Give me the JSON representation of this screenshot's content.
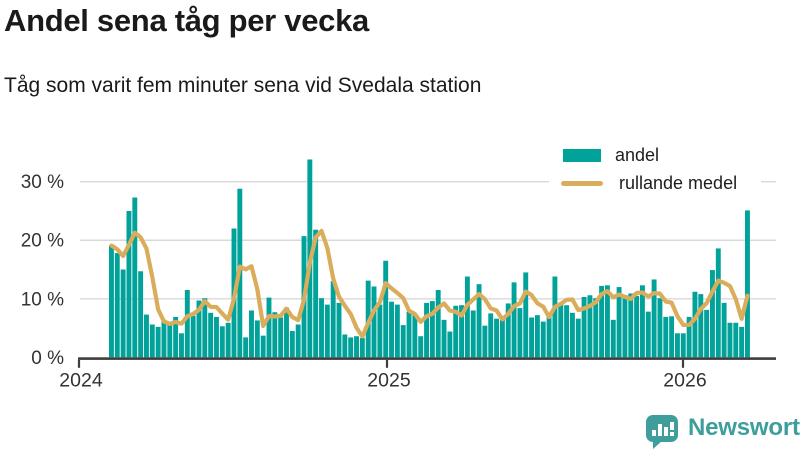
{
  "header": {
    "title": "Andel sena tåg per vecka",
    "subtitle": "Tåg som varit fem minuter sena vid Svedala station"
  },
  "legend": {
    "items": [
      {
        "label": "andel",
        "swatch": "bar-swatch",
        "color": "#01a29a"
      },
      {
        "label": "rullande medel",
        "swatch": "line-swatch",
        "color": "#d9ad5c"
      }
    ]
  },
  "footer": {
    "brand": "Newsworthy",
    "brand_color": "#3d9e9c",
    "logo_icon": "bar-chart-speech-bubble-icon"
  },
  "chart_data": {
    "type": "bar",
    "title": "Andel sena tåg per vecka",
    "subtitle": "Tåg som varit fem minuter sena vid Svedala station",
    "unit": "percent of trains per week",
    "x_ticks": [
      "2024",
      "2025",
      "2026"
    ],
    "y_ticks": [
      "0 %",
      "10 %",
      "20 %",
      "30 %"
    ],
    "ylim": [
      0,
      35
    ],
    "grid": "horizontal",
    "legend_position": "top-right",
    "bar_color": "#01a29a",
    "line_color": "#d9ad5c",
    "axis_color": "#3d3d3d",
    "grid_color": "#d9d9d9",
    "weeks_per_year_at_ticks": {
      "2024_starts_at_bar_index": -5.5,
      "2025_starts_at_bar_index": 47,
      "2026_starts_at_bar_index": 99
    },
    "series": [
      {
        "name": "andel",
        "type": "bar",
        "values": [
          19.1,
          17.8,
          15.0,
          25.0,
          27.3,
          14.7,
          7.3,
          5.6,
          5.2,
          6.4,
          5.6,
          6.9,
          4.1,
          11.5,
          7.1,
          9.7,
          10.1,
          7.6,
          6.9,
          5.3,
          5.9,
          22.0,
          28.8,
          3.4,
          8.0,
          6.3,
          3.7,
          10.2,
          7.7,
          6.8,
          8.5,
          4.5,
          5.6,
          20.7,
          33.8,
          21.8,
          10.1,
          9.0,
          13.0,
          9.3,
          3.9,
          3.4,
          3.6,
          3.3,
          13.1,
          12.1,
          9.0,
          16.5,
          9.5,
          9.0,
          5.5,
          7.8,
          7.3,
          3.6,
          9.3,
          9.6,
          11.5,
          6.4,
          4.4,
          8.8,
          8.9,
          13.8,
          8.0,
          12.5,
          5.4,
          7.5,
          6.6,
          6.4,
          9.2,
          12.8,
          8.4,
          14.5,
          6.8,
          7.2,
          6.1,
          7.4,
          13.8,
          9.2,
          8.9,
          7.6,
          6.6,
          10.3,
          10.6,
          10.1,
          12.2,
          12.3,
          6.4,
          12.0,
          10.6,
          10.9,
          10.5,
          12.3,
          7.8,
          13.3,
          10.1,
          6.9,
          7.0,
          4.1,
          4.1,
          6.9,
          11.2,
          10.8,
          8.1,
          14.9,
          18.6,
          9.3,
          5.9,
          5.9,
          5.2,
          25.1
        ]
      },
      {
        "name": "rullande medel",
        "type": "line",
        "derived_from": "andel",
        "derivation": "rullande medel (rolling mean, trailing window of 4 weeks, estimated from chart)"
      }
    ]
  }
}
